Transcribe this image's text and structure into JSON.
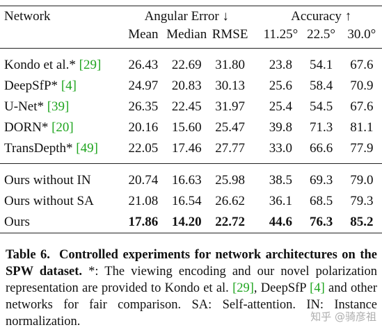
{
  "table": {
    "header": {
      "network": "Network",
      "angular_error": "Angular Error ↓",
      "accuracy": "Accuracy ↑",
      "sub": [
        "Mean",
        "Median",
        "RMSE",
        "11.25°",
        "22.5°",
        "30.0°"
      ]
    },
    "rows_group1": [
      {
        "name": "Kondo et al.* ",
        "ref": "[29]",
        "vals": [
          "26.43",
          "22.69",
          "31.80",
          "23.8",
          "54.1",
          "67.6"
        ]
      },
      {
        "name": "DeepSfP* ",
        "ref": "[4]",
        "vals": [
          "24.97",
          "20.83",
          "30.13",
          "25.6",
          "58.4",
          "70.9"
        ]
      },
      {
        "name": "U-Net* ",
        "ref": "[39]",
        "vals": [
          "26.35",
          "22.45",
          "31.97",
          "25.4",
          "54.5",
          "67.6"
        ]
      },
      {
        "name": "DORN* ",
        "ref": "[20]",
        "vals": [
          "20.16",
          "15.60",
          "25.47",
          "39.8",
          "71.3",
          "81.1"
        ]
      },
      {
        "name": "TransDepth* ",
        "ref": "[49]",
        "vals": [
          "22.05",
          "17.46",
          "27.77",
          "33.0",
          "66.6",
          "77.9"
        ]
      }
    ],
    "rows_group2": [
      {
        "name": "Ours without IN",
        "vals": [
          "20.74",
          "16.63",
          "25.98",
          "38.5",
          "69.3",
          "79.0"
        ]
      },
      {
        "name": "Ours without SA",
        "vals": [
          "21.08",
          "16.54",
          "26.62",
          "36.1",
          "68.5",
          "79.3"
        ]
      },
      {
        "name": "Ours",
        "vals": [
          "17.86",
          "14.20",
          "22.72",
          "44.6",
          "76.3",
          "85.2"
        ]
      }
    ]
  },
  "caption": {
    "label": "Table 6.",
    "title": "Controlled experiments for network architectures on the SPW dataset.",
    "text1": " *: The viewing encoding and our novel polarization representation are provided to Kondo et al. ",
    "ref1": "[29]",
    "text2": ", DeepSfP ",
    "ref2": "[4]",
    "text3": " and other networks for fair comparison. SA: Self-attention. IN: Instance normalization."
  },
  "watermark": "知乎 @骑彦祖",
  "colors": {
    "reference": "#1fa51f",
    "text": "#111111"
  }
}
